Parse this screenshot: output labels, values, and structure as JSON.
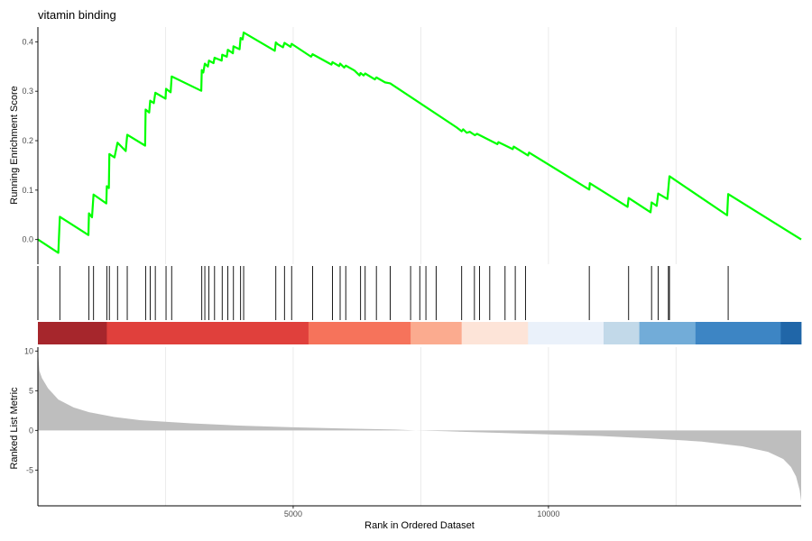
{
  "chart_data": {
    "type": "line",
    "title": "vitamin binding",
    "panels": {
      "running_score": {
        "ylabel": "Running Enrichment Score",
        "ylim": [
          -0.05,
          0.43
        ],
        "yticks": [
          0.0,
          0.1,
          0.2,
          0.3,
          0.4
        ],
        "ytick_labels": [
          "0.0",
          "0.1",
          "0.2",
          "0.3",
          "0.4"
        ],
        "line_color": "#00ff00",
        "points": [
          [
            0,
            0.0
          ],
          [
            400,
            -0.027
          ],
          [
            430,
            0.046
          ],
          [
            990,
            0.009
          ],
          [
            1000,
            0.053
          ],
          [
            1060,
            0.045
          ],
          [
            1090,
            0.091
          ],
          [
            1340,
            0.073
          ],
          [
            1350,
            0.108
          ],
          [
            1390,
            0.104
          ],
          [
            1400,
            0.173
          ],
          [
            1500,
            0.166
          ],
          [
            1560,
            0.196
          ],
          [
            1720,
            0.179
          ],
          [
            1750,
            0.212
          ],
          [
            2100,
            0.19
          ],
          [
            2110,
            0.263
          ],
          [
            2180,
            0.257
          ],
          [
            2200,
            0.281
          ],
          [
            2270,
            0.276
          ],
          [
            2300,
            0.297
          ],
          [
            2500,
            0.285
          ],
          [
            2510,
            0.305
          ],
          [
            2600,
            0.298
          ],
          [
            2620,
            0.33
          ],
          [
            3200,
            0.301
          ],
          [
            3210,
            0.343
          ],
          [
            3240,
            0.338
          ],
          [
            3270,
            0.356
          ],
          [
            3330,
            0.35
          ],
          [
            3350,
            0.362
          ],
          [
            3440,
            0.357
          ],
          [
            3460,
            0.368
          ],
          [
            3600,
            0.362
          ],
          [
            3610,
            0.374
          ],
          [
            3700,
            0.37
          ],
          [
            3720,
            0.384
          ],
          [
            3820,
            0.377
          ],
          [
            3830,
            0.391
          ],
          [
            3950,
            0.385
          ],
          [
            3970,
            0.408
          ],
          [
            4010,
            0.405
          ],
          [
            4030,
            0.419
          ],
          [
            4640,
            0.382
          ],
          [
            4660,
            0.399
          ],
          [
            4700,
            0.395
          ],
          [
            4800,
            0.389
          ],
          [
            4830,
            0.398
          ],
          [
            4950,
            0.39
          ],
          [
            4970,
            0.396
          ],
          [
            5350,
            0.37
          ],
          [
            5380,
            0.375
          ],
          [
            5750,
            0.354
          ],
          [
            5770,
            0.359
          ],
          [
            5900,
            0.351
          ],
          [
            5920,
            0.356
          ],
          [
            6000,
            0.348
          ],
          [
            6030,
            0.352
          ],
          [
            6200,
            0.342
          ],
          [
            6300,
            0.332
          ],
          [
            6320,
            0.337
          ],
          [
            6380,
            0.332
          ],
          [
            6410,
            0.336
          ],
          [
            6600,
            0.324
          ],
          [
            6630,
            0.328
          ],
          [
            6800,
            0.318
          ],
          [
            6900,
            0.316
          ],
          [
            8200,
            0.227
          ],
          [
            8300,
            0.219
          ],
          [
            8330,
            0.223
          ],
          [
            8400,
            0.216
          ],
          [
            8460,
            0.218
          ],
          [
            8560,
            0.211
          ],
          [
            8600,
            0.214
          ],
          [
            9000,
            0.193
          ],
          [
            9020,
            0.197
          ],
          [
            9300,
            0.183
          ],
          [
            9320,
            0.188
          ],
          [
            9600,
            0.17
          ],
          [
            9620,
            0.176
          ],
          [
            10800,
            0.101
          ],
          [
            10810,
            0.114
          ],
          [
            11550,
            0.066
          ],
          [
            11570,
            0.084
          ],
          [
            12000,
            0.055
          ],
          [
            12020,
            0.075
          ],
          [
            12120,
            0.068
          ],
          [
            12150,
            0.093
          ],
          [
            12330,
            0.082
          ],
          [
            12370,
            0.128
          ],
          [
            13500,
            0.049
          ],
          [
            13520,
            0.092
          ],
          [
            14950,
            0.0
          ]
        ]
      },
      "gene_hits": {
        "ranks": [
          430,
          1000,
          1090,
          1350,
          1400,
          1560,
          1750,
          2110,
          2200,
          2300,
          2510,
          2620,
          3210,
          3270,
          3350,
          3460,
          3610,
          3720,
          3830,
          3970,
          4030,
          4660,
          4830,
          4970,
          5380,
          5770,
          5920,
          6030,
          6320,
          6410,
          6630,
          6900,
          7300,
          7480,
          7600,
          7800,
          8300,
          8550,
          8650,
          8850,
          9150,
          9350,
          9550,
          10800,
          11570,
          12020,
          12150,
          12350,
          12370,
          13520
        ]
      },
      "color_bar": {
        "segments": [
          {
            "from": 0,
            "to": 1350,
            "color": "#a6262c"
          },
          {
            "from": 1350,
            "to": 5300,
            "color": "#e0403c"
          },
          {
            "from": 5300,
            "to": 7300,
            "color": "#f6735b"
          },
          {
            "from": 7300,
            "to": 8300,
            "color": "#fbab8f"
          },
          {
            "from": 8300,
            "to": 9600,
            "color": "#fde4d8"
          },
          {
            "from": 9600,
            "to": 11080,
            "color": "#eaf1fa"
          },
          {
            "from": 11080,
            "to": 11780,
            "color": "#c2d9e9"
          },
          {
            "from": 11780,
            "to": 12880,
            "color": "#72acd8"
          },
          {
            "from": 12880,
            "to": 14550,
            "color": "#3d85c4"
          },
          {
            "from": 14550,
            "to": 14950,
            "color": "#2066a8"
          }
        ]
      },
      "ranked_metric": {
        "ylabel": "Ranked List Metric",
        "ylim": [
          -9.5,
          10.5
        ],
        "yticks": [
          -5,
          0,
          5,
          10
        ],
        "ytick_labels": [
          "-5",
          "0",
          "5",
          "10"
        ],
        "fill_color": "#bebebe",
        "points": [
          [
            0,
            10.0
          ],
          [
            30,
            7.5
          ],
          [
            80,
            6.6
          ],
          [
            200,
            5.3
          ],
          [
            400,
            3.9
          ],
          [
            700,
            2.9
          ],
          [
            1000,
            2.3
          ],
          [
            1500,
            1.7
          ],
          [
            2000,
            1.3
          ],
          [
            3000,
            0.9
          ],
          [
            4000,
            0.6
          ],
          [
            5000,
            0.4
          ],
          [
            6000,
            0.25
          ],
          [
            7000,
            0.12
          ],
          [
            7400,
            0.0
          ],
          [
            8000,
            -0.1
          ],
          [
            9000,
            -0.3
          ],
          [
            10000,
            -0.5
          ],
          [
            11000,
            -0.7
          ],
          [
            12000,
            -1.0
          ],
          [
            13000,
            -1.4
          ],
          [
            13800,
            -2.0
          ],
          [
            14300,
            -2.7
          ],
          [
            14600,
            -3.6
          ],
          [
            14750,
            -4.6
          ],
          [
            14850,
            -5.8
          ],
          [
            14920,
            -7.5
          ],
          [
            14950,
            -8.9
          ]
        ]
      }
    },
    "x": {
      "label": "Rank in Ordered Dataset",
      "range": [
        0,
        14950
      ],
      "ticks": [
        5000,
        10000
      ],
      "tick_labels": [
        "5000",
        "10000"
      ],
      "gridlines": [
        2500,
        5000,
        7500,
        10000,
        12500
      ]
    },
    "grid": true,
    "legend": "none"
  }
}
